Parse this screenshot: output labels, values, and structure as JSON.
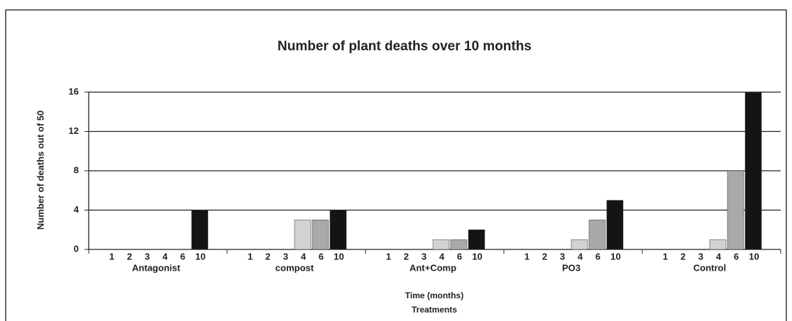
{
  "chart_data": {
    "type": "bar",
    "title": "Number of plant deaths over 10 months",
    "y_label": "Number of deaths out of 50",
    "x_label": "Time (months)",
    "x_label_2": "Treatments",
    "categories": [
      "Antagonist",
      "compost",
      "Ant+Comp",
      "PO3",
      "Control"
    ],
    "series": [
      {
        "name": "1",
        "color": "#e0e0e0",
        "values": [
          0,
          0,
          0,
          0,
          0
        ]
      },
      {
        "name": "2",
        "color": "#d6d6d6",
        "values": [
          0,
          0,
          0,
          0,
          0
        ]
      },
      {
        "name": "3",
        "color": "#cccccc",
        "values": [
          0,
          0,
          0,
          0,
          0
        ]
      },
      {
        "name": "4",
        "color": "#d2d2d2",
        "values": [
          0,
          3,
          1,
          1,
          1
        ]
      },
      {
        "name": "6",
        "color": "#a9a9a9",
        "values": [
          0,
          3,
          1,
          3,
          8
        ]
      },
      {
        "name": "10",
        "color": "#141414",
        "values": [
          4,
          4,
          2,
          5,
          16
        ]
      }
    ],
    "ylim": [
      0,
      16
    ],
    "yticks": [
      0,
      4,
      8,
      12,
      16
    ],
    "grid": true
  }
}
